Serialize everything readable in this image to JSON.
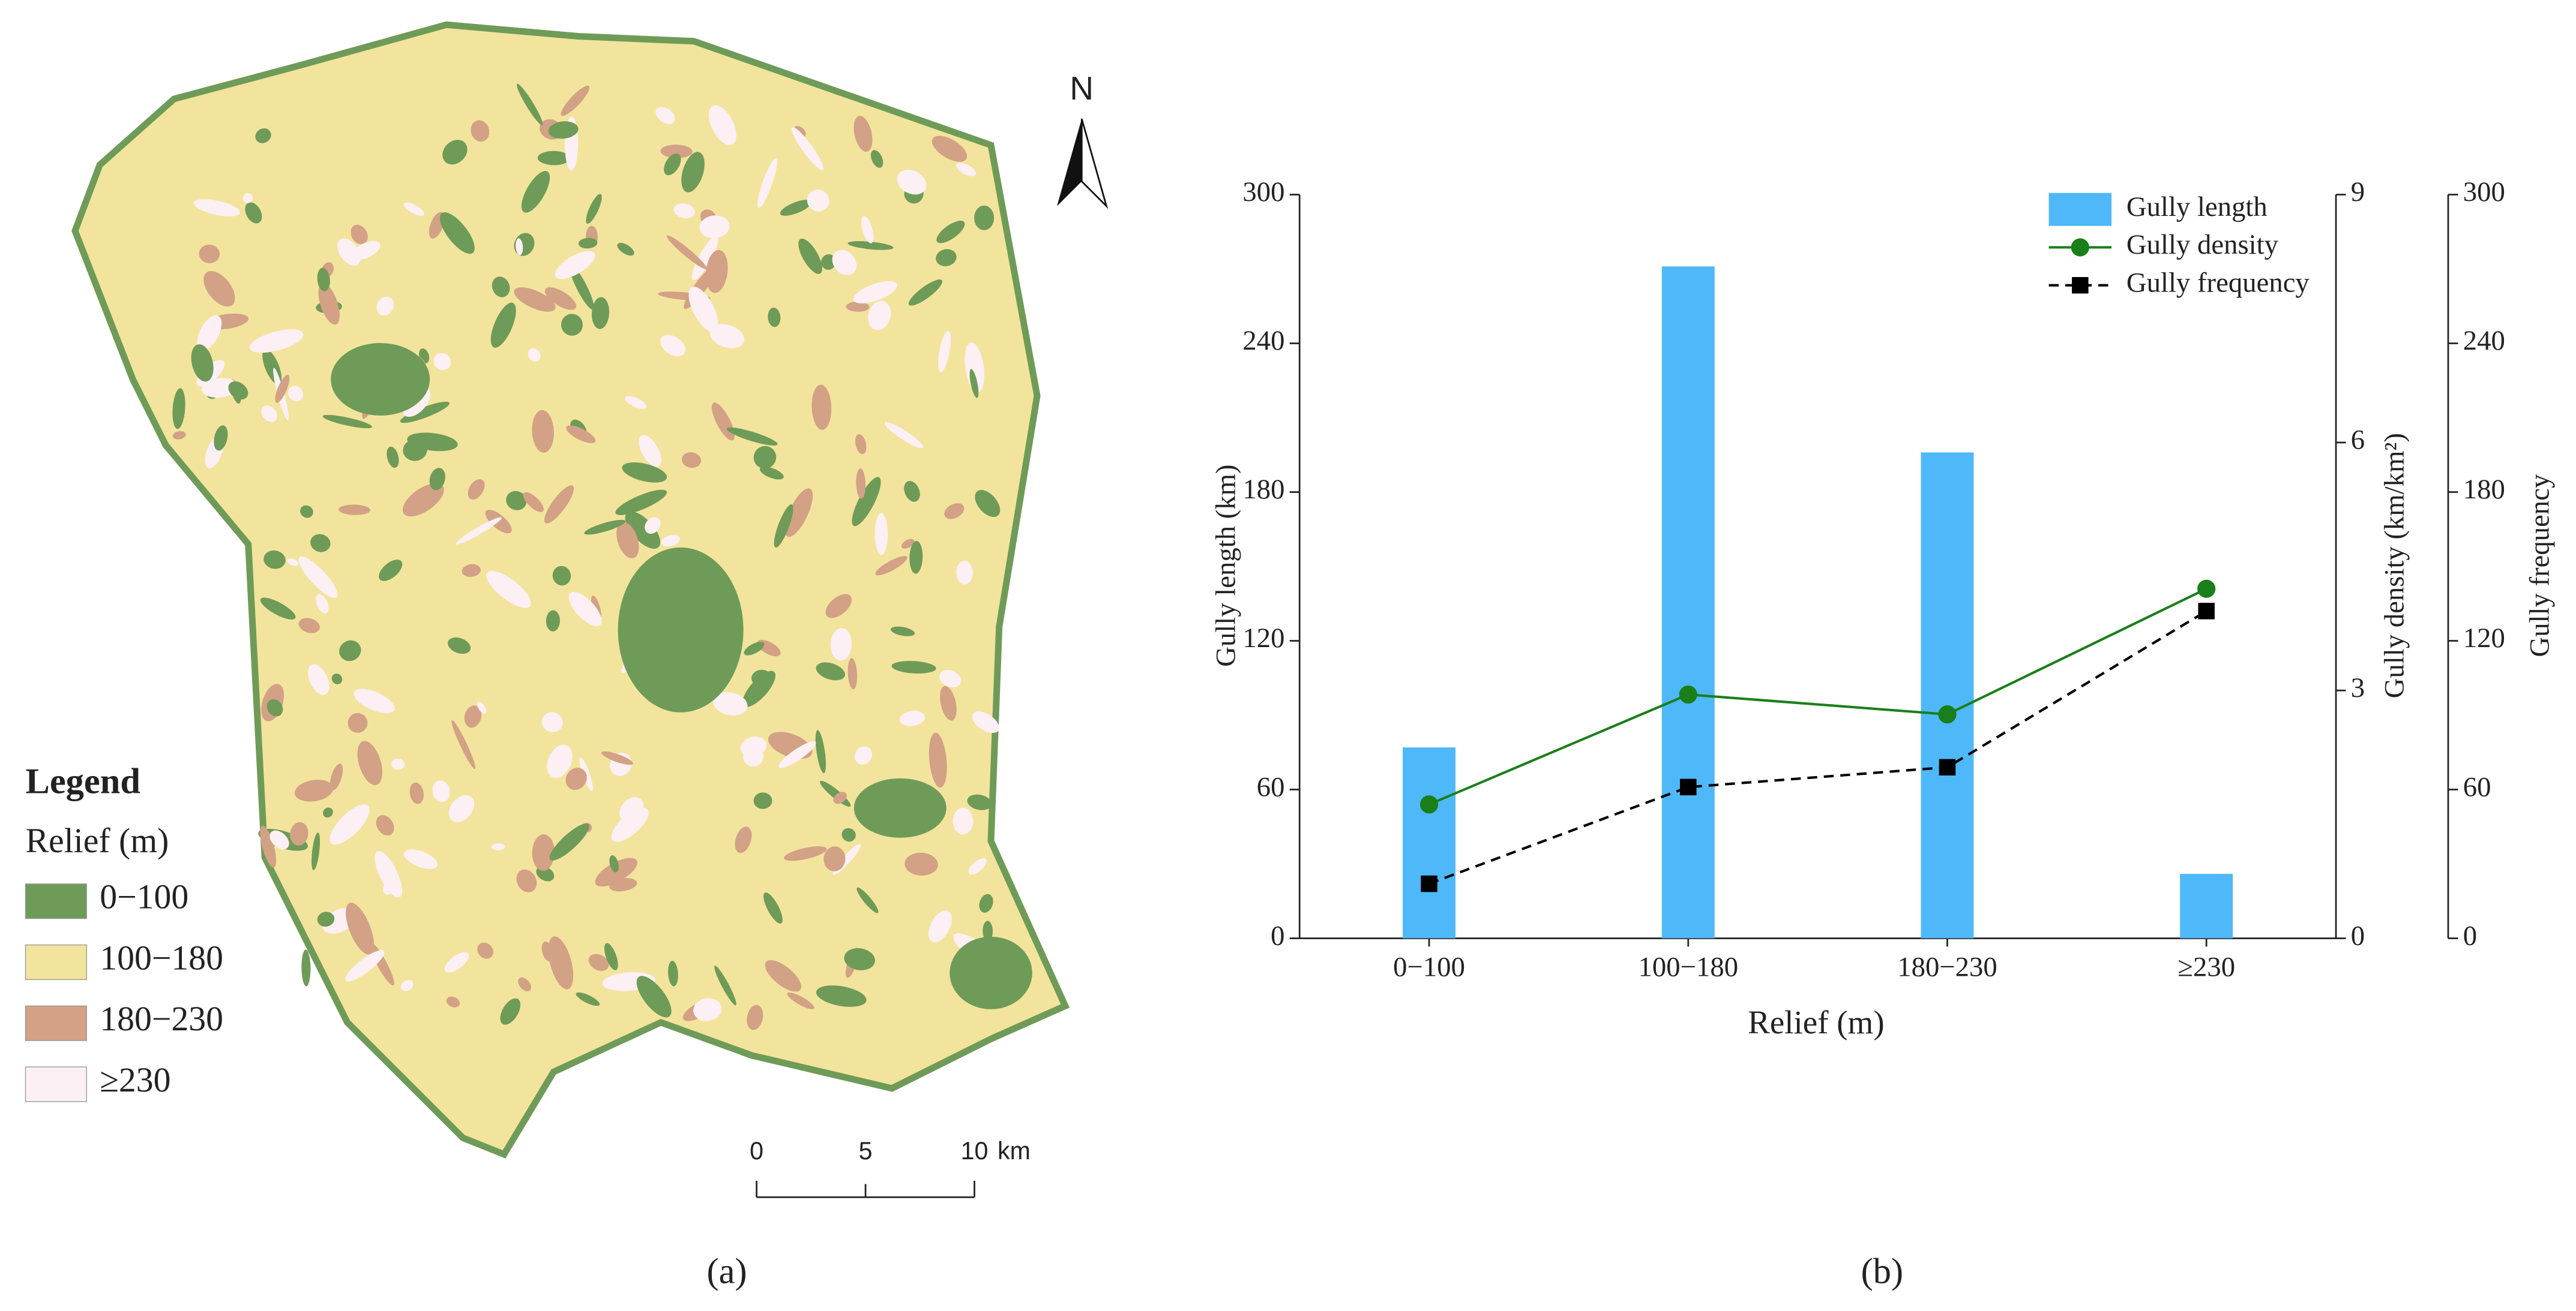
{
  "map": {
    "north": "N",
    "legend_title": "Legend",
    "legend_subtitle": "Relief (m)",
    "items": [
      {
        "label": "0−100",
        "color": "#6f9b58"
      },
      {
        "label": "100−180",
        "color": "#f2e49c"
      },
      {
        "label": "180−230",
        "color": "#d3a186"
      },
      {
        "label": "≥230",
        "color": "#fcf0f5"
      }
    ],
    "scale_labels": [
      "0",
      "5",
      "10"
    ],
    "scale_unit": "km",
    "panel_label": "(a)"
  },
  "chart_data": {
    "type": "bar-line",
    "panel_label": "(b)",
    "x_label": "Relief (m)",
    "y_label": "Gully length (km)",
    "y2_label": "Gully density (km/km²)",
    "y3_label": "Gully frequency",
    "categories": [
      "0−100",
      "100−180",
      "180−230",
      "≥230"
    ],
    "ylim": [
      0,
      300
    ],
    "yticks": [
      0,
      60,
      120,
      180,
      240,
      300
    ],
    "y2lim": [
      0,
      9
    ],
    "y2ticks": [
      0,
      3,
      6,
      9
    ],
    "y3lim": [
      0,
      300
    ],
    "y3ticks": [
      0,
      60,
      120,
      180,
      240,
      300
    ],
    "series": [
      {
        "name": "Gully length",
        "color": "#4fb8f8",
        "kind": "bar",
        "axis": "y",
        "values": [
          77,
          271,
          196,
          26
        ]
      },
      {
        "name": "Gully density",
        "color": "#1a7f1a",
        "kind": "line",
        "marker": "circle",
        "dashed": false,
        "axis": "y2",
        "values": [
          1.62,
          2.95,
          2.71,
          4.23
        ]
      },
      {
        "name": "Gully frequency",
        "color": "#000000",
        "kind": "line",
        "marker": "square",
        "dashed": true,
        "axis": "y3",
        "values": [
          22,
          61,
          69,
          132
        ]
      }
    ]
  }
}
